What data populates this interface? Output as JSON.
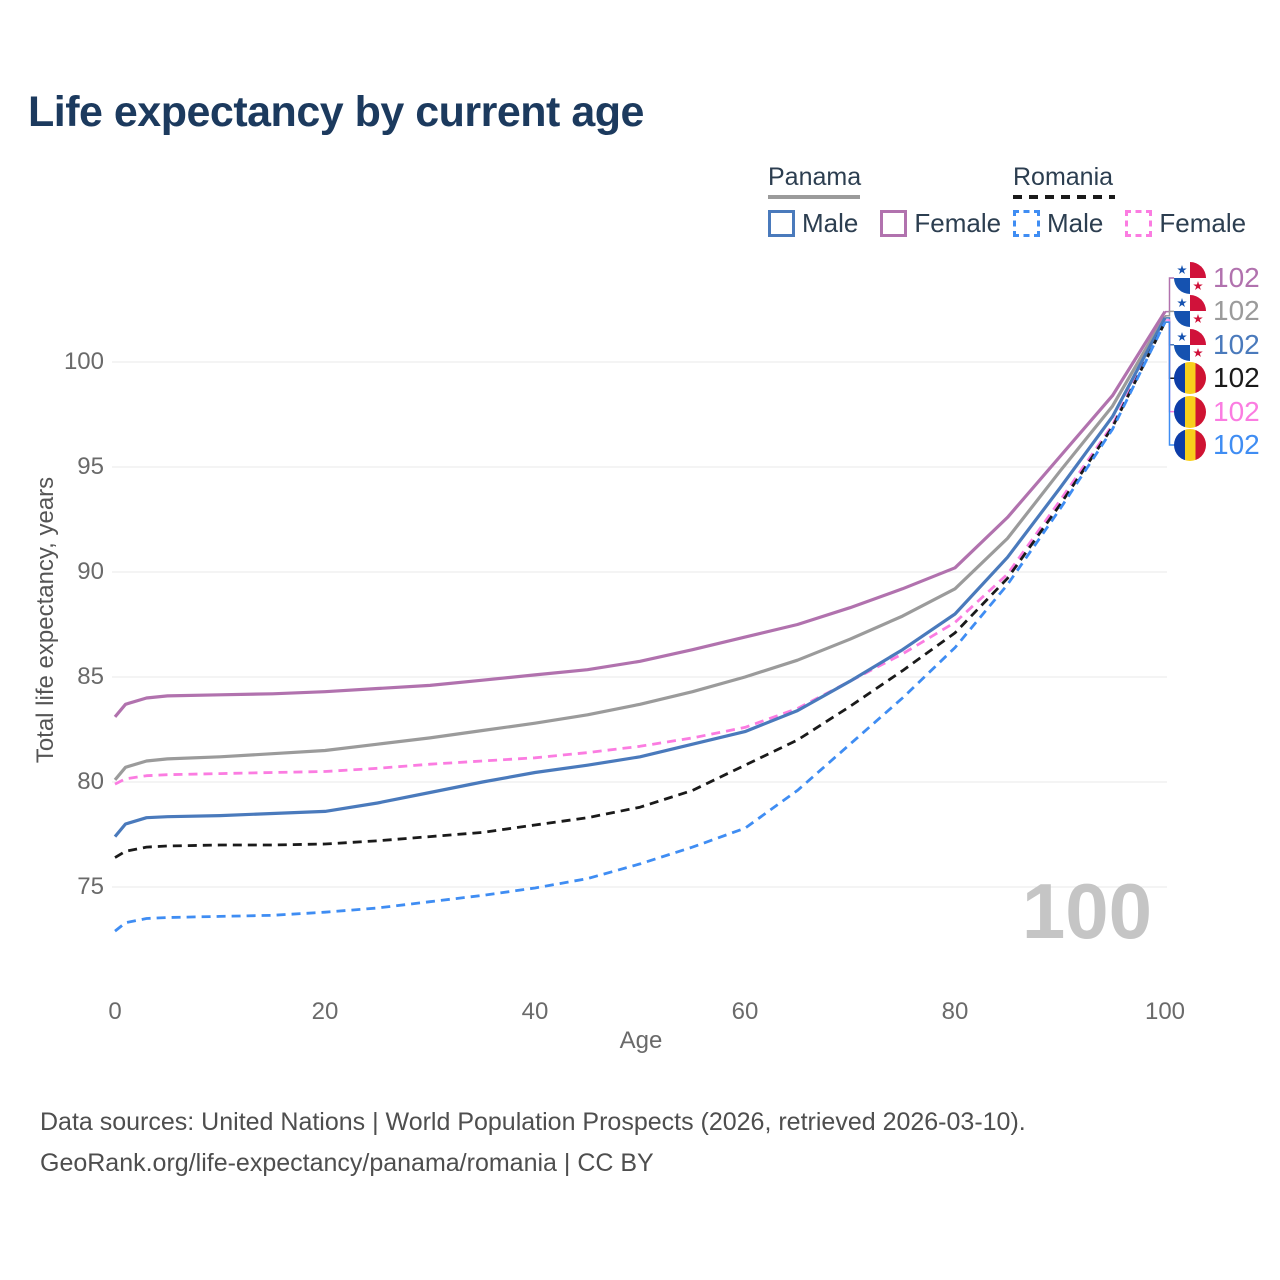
{
  "title": "Life expectancy by current age",
  "legend": {
    "groups": [
      {
        "label": "Panama",
        "line_style": "solid",
        "underline_color": "#9b9b9b",
        "items": [
          {
            "label": "Male",
            "color": "#4a7abc"
          },
          {
            "label": "Female",
            "color": "#b172ae"
          }
        ]
      },
      {
        "label": "Romania",
        "line_style": "dashed",
        "underline_color": "#1a1a1a",
        "items": [
          {
            "label": "Male",
            "color": "#3f8df3"
          },
          {
            "label": "Female",
            "color": "#fb7ce1"
          }
        ]
      }
    ]
  },
  "chart_data": {
    "type": "line",
    "title": "Life expectancy by current age",
    "xlabel": "Age",
    "ylabel": "Total life expectancy, years",
    "xticks": [
      0,
      20,
      40,
      60,
      80,
      100
    ],
    "yticks": [
      75,
      80,
      85,
      90,
      95,
      100
    ],
    "xlim": [
      0,
      100
    ],
    "ylim": [
      72,
      103
    ],
    "grid": "horizontal-only",
    "legend_position": "top-right",
    "hover_age_label": "100",
    "x": [
      0,
      1,
      3,
      5,
      10,
      15,
      20,
      25,
      30,
      35,
      40,
      45,
      50,
      55,
      60,
      65,
      70,
      75,
      80,
      85,
      90,
      95,
      100
    ],
    "series": [
      {
        "name": "Panama Female",
        "country": "Panama",
        "sex": "female",
        "style": "solid",
        "color": "#b172ae",
        "end_value": "102",
        "flag": "panama",
        "values": [
          83.1,
          83.7,
          84.0,
          84.1,
          84.15,
          84.2,
          84.3,
          84.45,
          84.6,
          84.85,
          85.1,
          85.35,
          85.75,
          86.3,
          86.9,
          87.5,
          88.3,
          89.2,
          90.2,
          92.6,
          95.5,
          98.4,
          102.4
        ]
      },
      {
        "name": "Panama Both sexes",
        "country": "Panama",
        "sex": "both",
        "style": "solid",
        "color": "#9b9b9b",
        "end_value": "102",
        "flag": "panama",
        "values": [
          80.1,
          80.7,
          81.0,
          81.1,
          81.2,
          81.35,
          81.5,
          81.8,
          82.1,
          82.45,
          82.8,
          83.2,
          83.7,
          84.3,
          85.0,
          85.8,
          86.8,
          87.9,
          89.2,
          91.6,
          94.8,
          97.9,
          102.2
        ]
      },
      {
        "name": "Panama Male",
        "country": "Panama",
        "sex": "male",
        "style": "solid",
        "color": "#4a7abc",
        "end_value": "102",
        "flag": "panama",
        "values": [
          77.4,
          78.0,
          78.3,
          78.35,
          78.4,
          78.5,
          78.6,
          79.0,
          79.5,
          80.0,
          80.45,
          80.8,
          81.2,
          81.8,
          82.4,
          83.4,
          84.8,
          86.3,
          88.0,
          90.7,
          94.0,
          97.4,
          102.1
        ]
      },
      {
        "name": "Romania Both sexes",
        "country": "Romania",
        "sex": "both",
        "style": "dashed",
        "color": "#1a1a1a",
        "end_value": "102",
        "flag": "romania",
        "values": [
          76.4,
          76.7,
          76.9,
          76.95,
          77.0,
          77.0,
          77.05,
          77.2,
          77.4,
          77.6,
          77.95,
          78.3,
          78.8,
          79.6,
          80.8,
          82.0,
          83.6,
          85.3,
          87.1,
          89.7,
          93.2,
          96.9,
          101.9
        ]
      },
      {
        "name": "Romania Female",
        "country": "Romania",
        "sex": "female",
        "style": "dashed",
        "color": "#fb7ce1",
        "end_value": "102",
        "flag": "romania",
        "values": [
          79.9,
          80.15,
          80.3,
          80.35,
          80.4,
          80.45,
          80.5,
          80.65,
          80.85,
          81.0,
          81.15,
          81.4,
          81.7,
          82.1,
          82.6,
          83.5,
          84.8,
          86.1,
          87.6,
          89.9,
          93.4,
          97.0,
          102.0
        ]
      },
      {
        "name": "Romania Male",
        "country": "Romania",
        "sex": "male",
        "style": "dashed",
        "color": "#3f8df3",
        "end_value": "102",
        "flag": "romania",
        "values": [
          72.9,
          73.3,
          73.5,
          73.55,
          73.6,
          73.65,
          73.8,
          74.0,
          74.3,
          74.6,
          74.95,
          75.4,
          76.1,
          76.9,
          77.8,
          79.6,
          81.8,
          84.0,
          86.4,
          89.4,
          93.0,
          96.8,
          101.9
        ]
      }
    ]
  },
  "footer": {
    "line1": "Data sources: United Nations | World Population Prospects (2026, retrieved 2026-03-10).",
    "line2": "GeoRank.org/life-expectancy/panama/romania | CC BY"
  }
}
